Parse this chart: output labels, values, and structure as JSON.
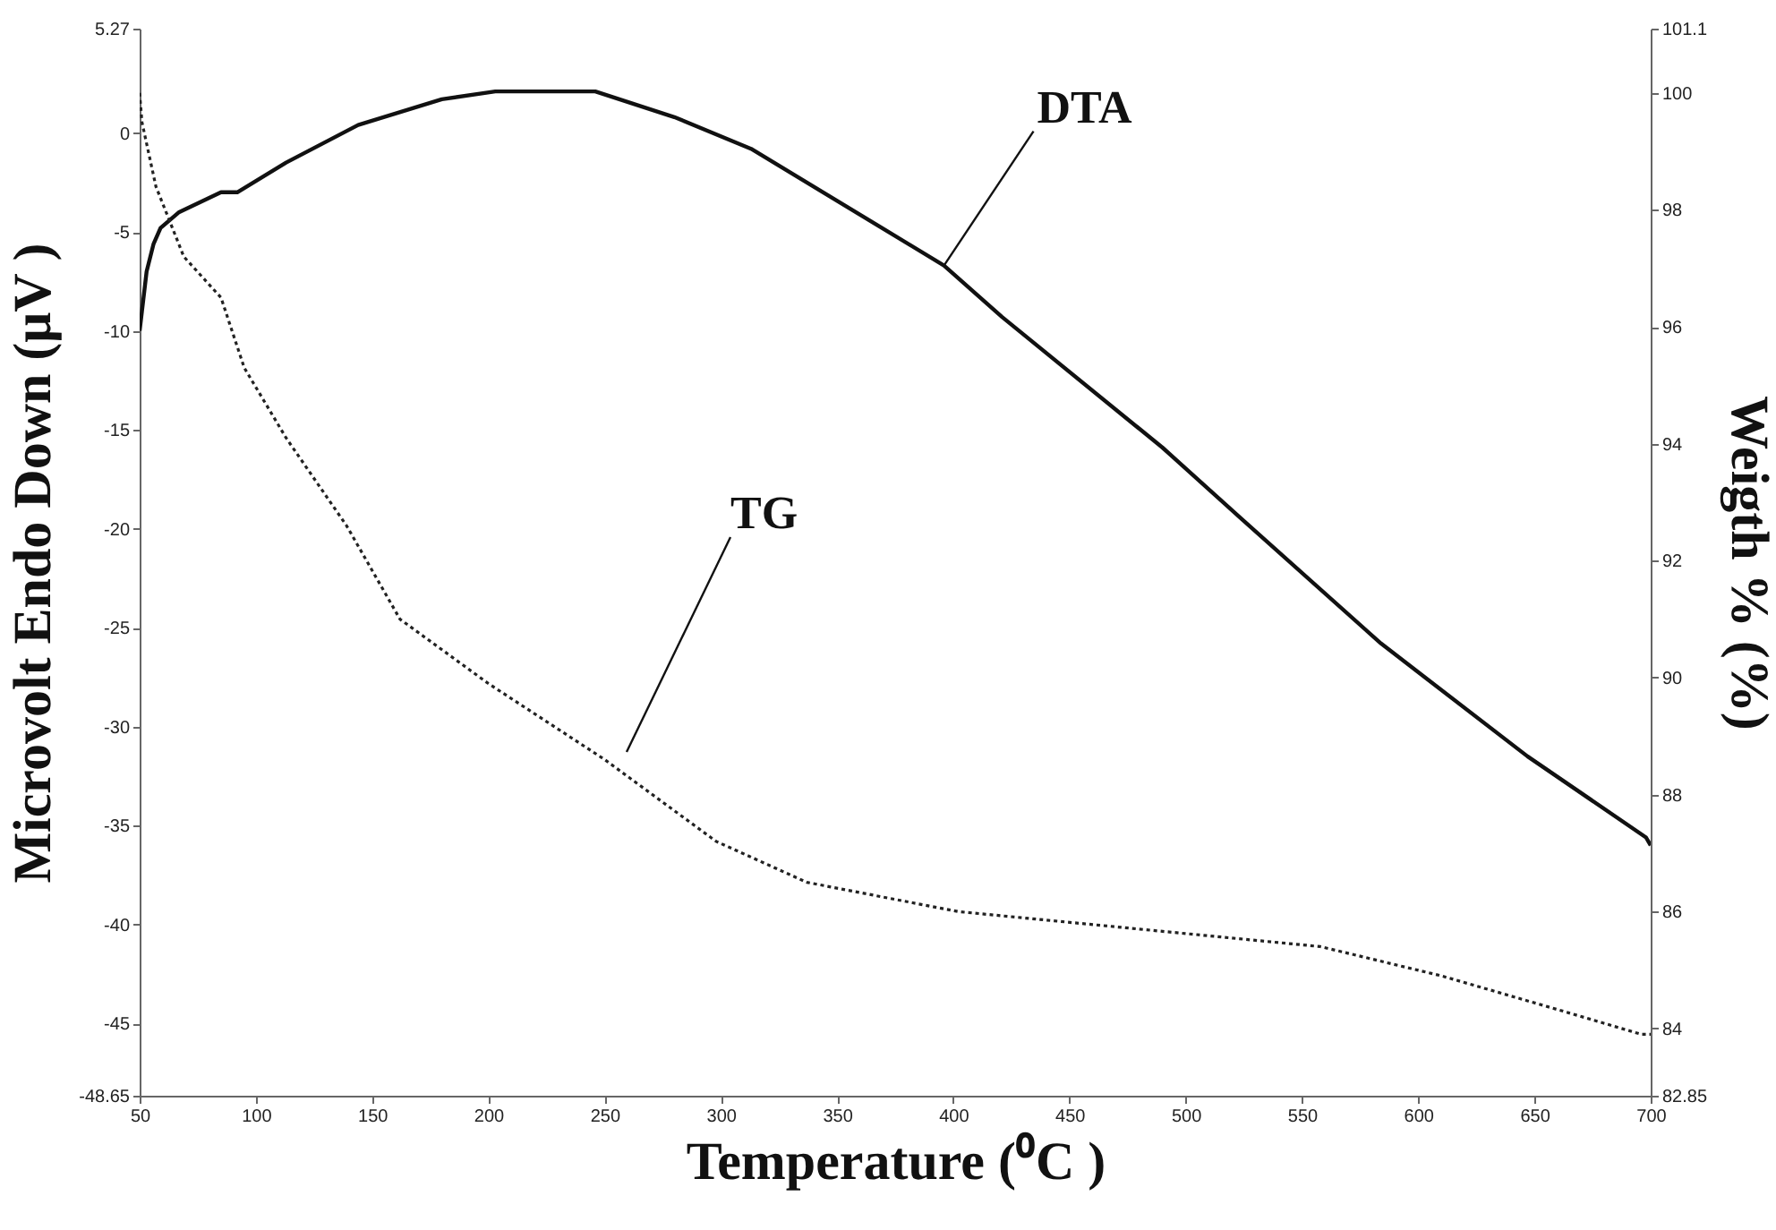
{
  "chart_data": {
    "type": "line",
    "xlabel": "Temperature (⁰C )",
    "ylabel": "Microvolt Endo Down (μV )",
    "y2label": "Weigth % (%)",
    "xlim": [
      50,
      700
    ],
    "xticks": [
      50,
      100,
      150,
      200,
      250,
      300,
      350,
      400,
      450,
      500,
      550,
      600,
      650,
      700
    ],
    "ylim": [
      -48.65,
      5.27
    ],
    "yticks": [
      5.27,
      0,
      -5,
      -10,
      -15,
      -20,
      -25,
      -30,
      -35,
      -40,
      -45,
      -48.65
    ],
    "y2lim": [
      82.85,
      101.1
    ],
    "y2ticks": [
      101.1,
      100,
      98,
      96,
      94,
      92,
      90,
      88,
      86,
      84,
      82.85
    ],
    "grid": false,
    "series": [
      {
        "color": "#111111",
        "line_style": "solid",
        "x": [
          50,
          51,
          53,
          56,
          59,
          67,
          85,
          92,
          113,
          144,
          180,
          203,
          246,
          280,
          313,
          344,
          396,
          421,
          490,
          524,
          584,
          647,
          698,
          700
        ],
        "values": [
          -10,
          -9,
          -7,
          -5.6,
          -4.8,
          -4,
          -3,
          -3,
          -1.5,
          0.4,
          1.7,
          2.1,
          2.1,
          0.8,
          -0.8,
          -3,
          -6.7,
          -9.3,
          -15.9,
          -19.5,
          -25.8,
          -31.5,
          -35.6,
          -36
        ]
      },
      {
        "color": "#222222",
        "line_style": "dotted",
        "axis": "y2",
        "x": [
          50,
          51,
          57,
          69,
          85,
          95,
          113,
          139,
          162,
          200,
          250,
          298,
          337,
          402,
          480,
          558,
          610,
          662,
          696,
          700
        ],
        "values": [
          100,
          99.5,
          98.4,
          97.2,
          96.5,
          95.3,
          94.1,
          92.6,
          91,
          89.9,
          88.6,
          87.2,
          86.5,
          86,
          85.7,
          85.4,
          84.9,
          84.3,
          83.9,
          83.9
        ]
      }
    ],
    "annotations": [
      {
        "text": "DTA",
        "x": 396,
        "y": -6.7
      },
      "TG"
    ]
  }
}
